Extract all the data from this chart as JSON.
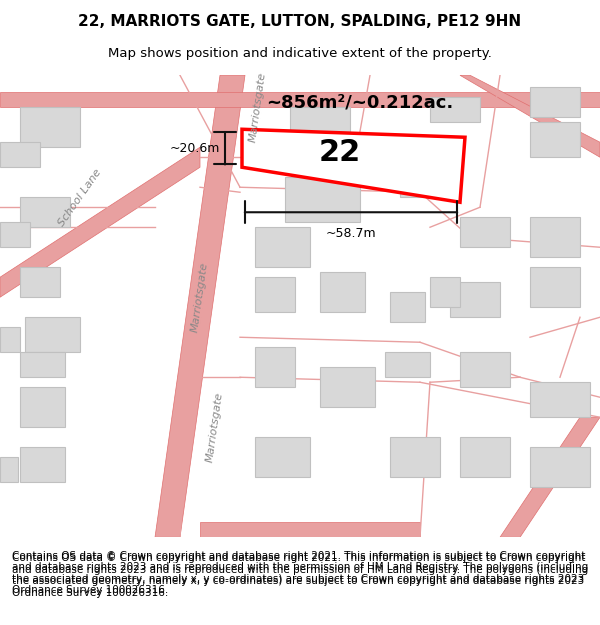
{
  "title": "22, MARRIOTS GATE, LUTTON, SPALDING, PE12 9HN",
  "subtitle": "Map shows position and indicative extent of the property.",
  "footer": "Contains OS data © Crown copyright and database right 2021. This information is subject to Crown copyright and database rights 2023 and is reproduced with the permission of HM Land Registry. The polygons (including the associated geometry, namely x, y co-ordinates) are subject to Crown copyright and database rights 2023 Ordnance Survey 100026316.",
  "map_bg": "#f9f9f9",
  "title_fontsize": 11,
  "subtitle_fontsize": 9.5,
  "footer_fontsize": 7.5,
  "road_color": "#e8a0a0",
  "road_edge_color": "#e07070",
  "building_fill": "#d8d8d8",
  "building_edge": "#c0c0c0",
  "highlight_fill": "#ffffff",
  "highlight_edge": "#ff0000",
  "highlight_edge_width": 2.5,
  "measure_color": "#111111",
  "label_color": "#444444",
  "street_label_color": "#888888",
  "area_text": "~856m²/~0.212ac.",
  "width_text": "~58.7m",
  "height_text": "~20.6m",
  "property_number": "22"
}
